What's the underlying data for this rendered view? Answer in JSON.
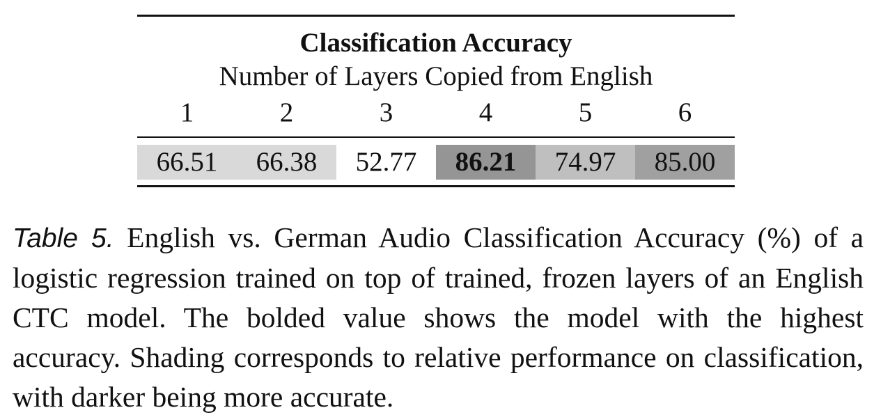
{
  "table": {
    "title": "Classification Accuracy",
    "subtitle": "Number of Layers Copied from English",
    "columns": [
      "1",
      "2",
      "3",
      "4",
      "5",
      "6"
    ],
    "values": [
      {
        "text": "66.51",
        "bold": false,
        "shade": "#d9d9d9"
      },
      {
        "text": "66.38",
        "bold": false,
        "shade": "#d9d9d9"
      },
      {
        "text": "52.77",
        "bold": false,
        "shade": "#ffffff"
      },
      {
        "text": "86.21",
        "bold": true,
        "shade": "#959595"
      },
      {
        "text": "74.97",
        "bold": false,
        "shade": "#bfbfbf"
      },
      {
        "text": "85.00",
        "bold": false,
        "shade": "#a0a0a0"
      }
    ]
  },
  "caption": {
    "label": "Table 5.",
    "text": "English vs. German Audio Classification Accuracy (%) of a logistic regression trained on top of trained, frozen layers of an English CTC model. The bolded value shows the model with the highest accuracy. Shading corresponds to relative performance on classification, with darker being more accurate."
  }
}
